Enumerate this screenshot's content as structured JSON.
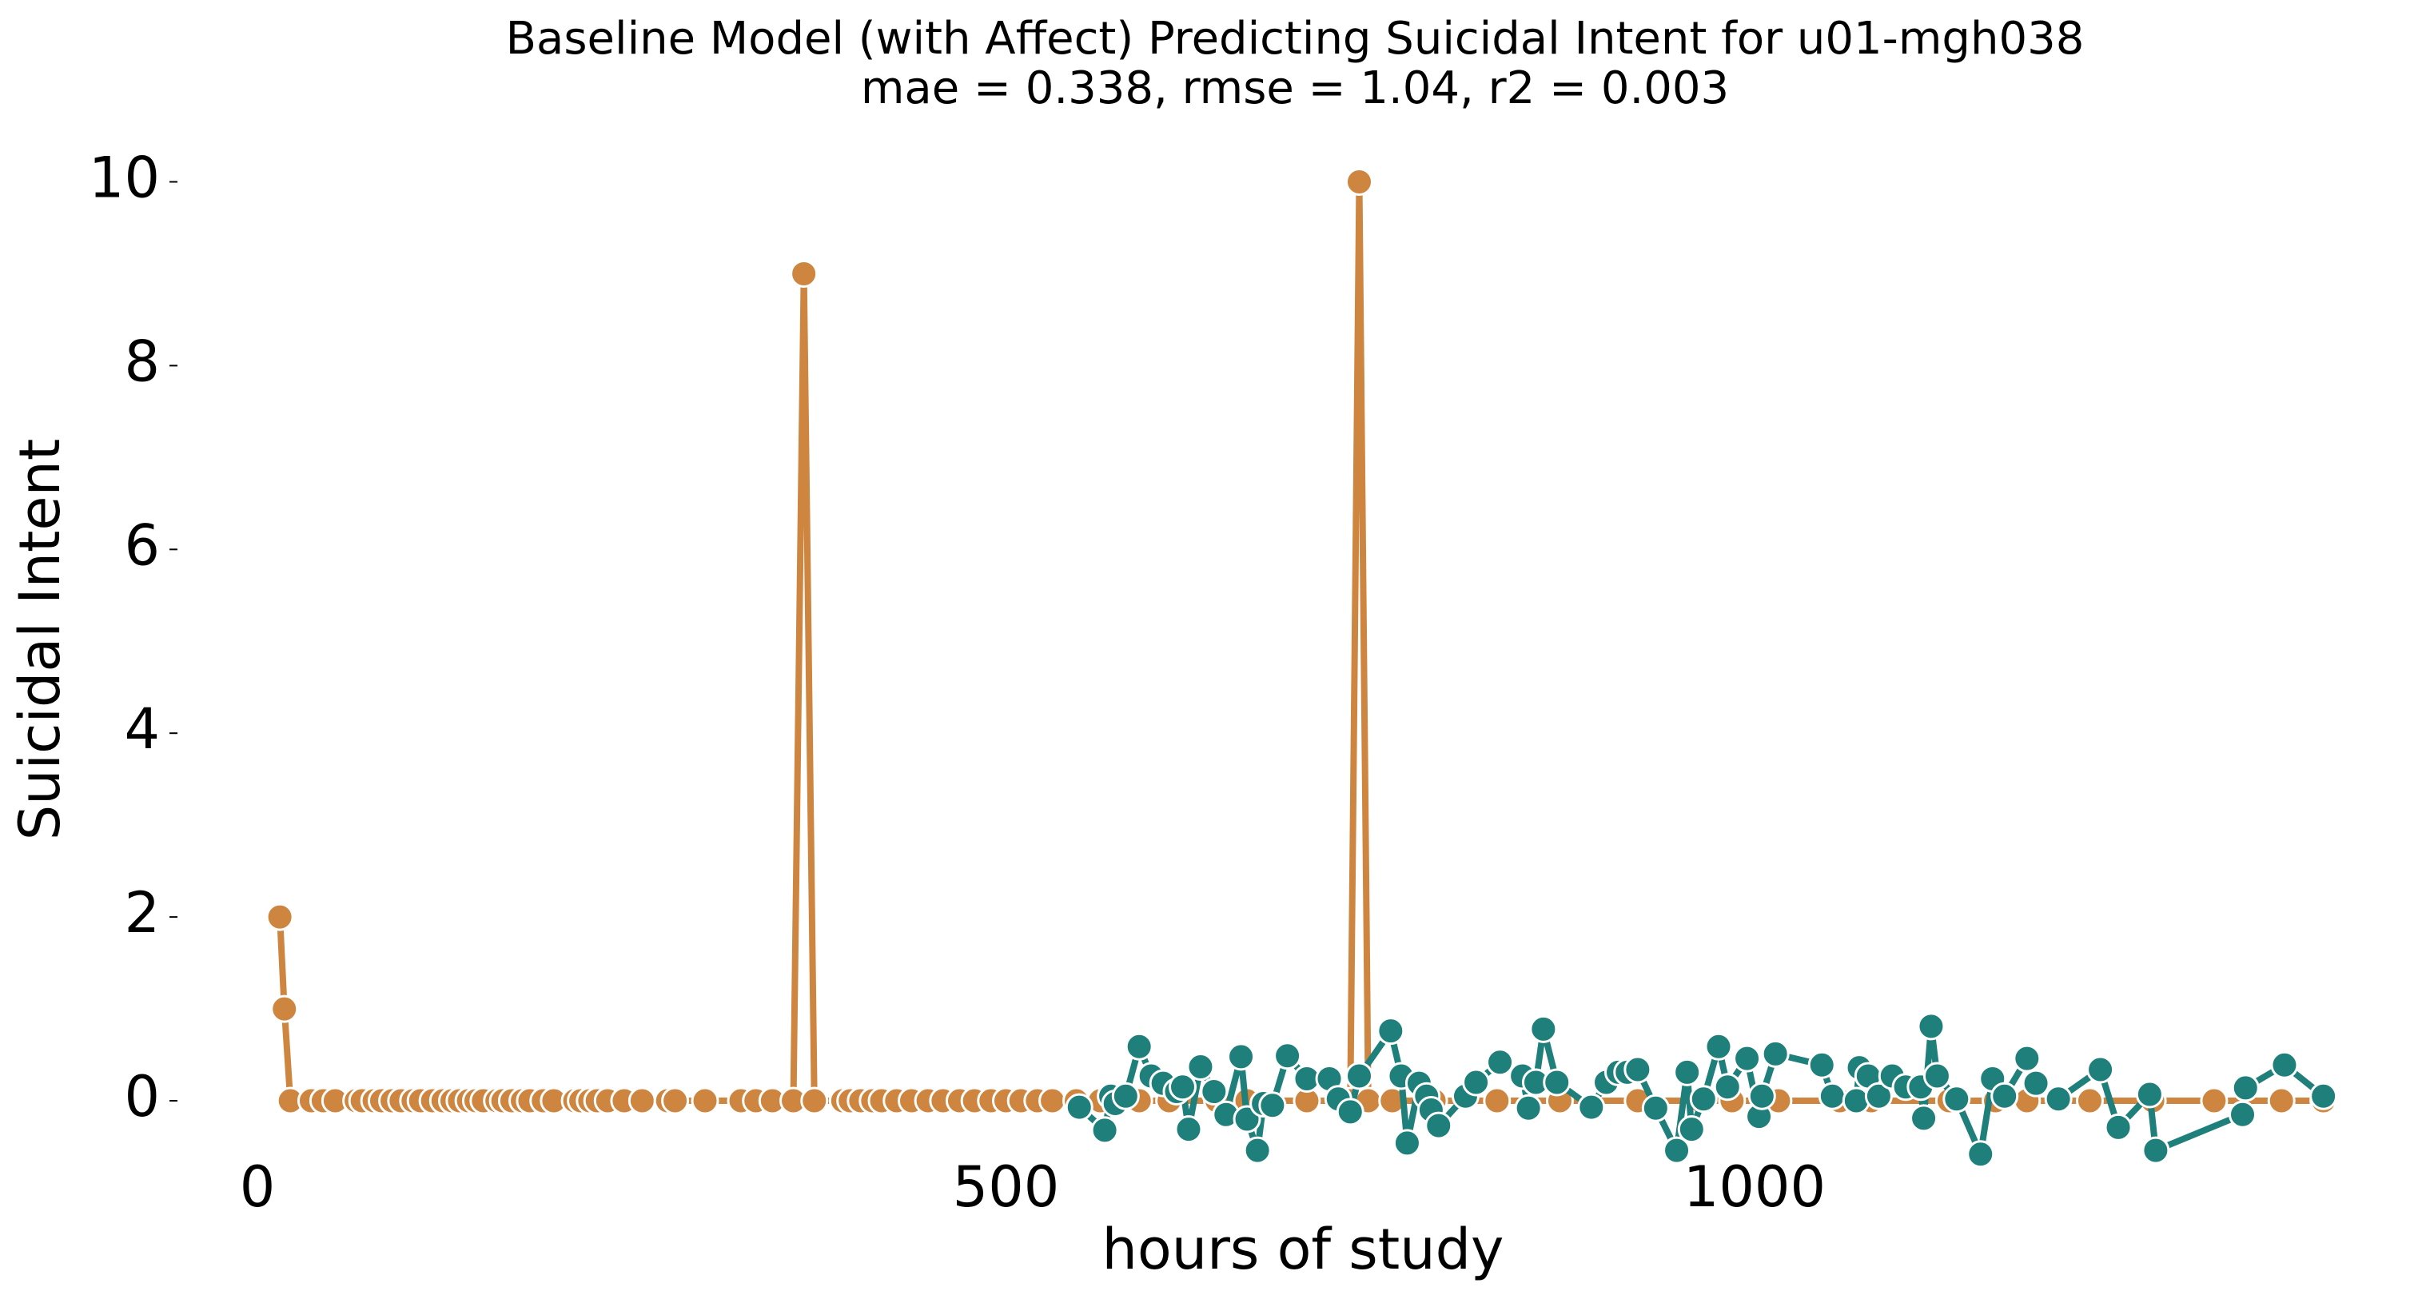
{
  "chart_data": {
    "type": "line",
    "title": "Baseline Model (with Affect) Predicting Suicidal Intent for u01-mgh038",
    "subtitle": "mae = 0.338, rmse = 1.04, r2 = 0.003",
    "xlabel": "hours of study",
    "ylabel": "Suicidal Intent",
    "xlim": [
      -47,
      1393
    ],
    "xticks": [
      0,
      500,
      1000
    ],
    "ylim": [
      -0.6,
      10.3
    ],
    "yticks": [
      0,
      2,
      4,
      6,
      8,
      10
    ],
    "grid": false,
    "series": [
      {
        "color": "#cd853f",
        "x": [
          15,
          18,
          22,
          36,
          44,
          52,
          66,
          70,
          78,
          83,
          90,
          96,
          104,
          109,
          117,
          124,
          130,
          135,
          141,
          146,
          151,
          160,
          164,
          170,
          177,
          182,
          191,
          198,
          212,
          216,
          222,
          227,
          234,
          245,
          257,
          274,
          279,
          299,
          323,
          333,
          344,
          358,
          365,
          372,
          391,
          396,
          403,
          411,
          417,
          427,
          437,
          448,
          458,
          469,
          479,
          490,
          500,
          510,
          521,
          531,
          547,
          563,
          589,
          609,
          641,
          661,
          701,
          730,
          736,
          742,
          758,
          786,
          828,
          870,
          922,
          964,
          985,
          1016,
          1057,
          1078,
          1130,
          1161,
          1182,
          1224,
          1266,
          1307,
          1352,
          1380
        ],
        "values": [
          2,
          1,
          0,
          0,
          0,
          0,
          0,
          0,
          0,
          0,
          0,
          0,
          0,
          0,
          0,
          0,
          0,
          0,
          0,
          0,
          0,
          0,
          0,
          0,
          0,
          0,
          0,
          0,
          0,
          0,
          0,
          0,
          0,
          0,
          0,
          0,
          0,
          0,
          0,
          0,
          0,
          0,
          9,
          0,
          0,
          0,
          0,
          0,
          0,
          0,
          0,
          0,
          0,
          0,
          0,
          0,
          0,
          0,
          0,
          0,
          0,
          0,
          0,
          0,
          0,
          0,
          0,
          0,
          10,
          0,
          0,
          0,
          0,
          0,
          0,
          0,
          0,
          0,
          0,
          0,
          0,
          0,
          0,
          0,
          0,
          0,
          0,
          0
        ]
      },
      {
        "color": "#1f7f7a",
        "x": [
          549,
          566,
          570,
          573,
          580,
          589,
          597,
          605,
          614,
          618,
          622,
          630,
          639,
          647,
          657,
          661,
          668,
          672,
          678,
          688,
          701,
          716,
          722,
          730,
          736,
          757,
          764,
          768,
          776,
          781,
          784,
          789,
          807,
          814,
          830,
          845,
          849,
          854,
          859,
          868,
          891,
          901,
          909,
          915,
          922,
          934,
          948,
          955,
          958,
          966,
          976,
          982,
          995,
          1003,
          1005,
          1014,
          1045,
          1052,
          1068,
          1070,
          1076,
          1083,
          1092,
          1101,
          1111,
          1113,
          1118,
          1122,
          1135,
          1151,
          1159,
          1167,
          1182,
          1188,
          1203,
          1231,
          1243,
          1264,
          1268,
          1326,
          1328,
          1354,
          1380
        ],
        "values": [
          -0.07,
          -0.32,
          0.05,
          -0.03,
          0.05,
          0.59,
          0.27,
          0.19,
          0.1,
          0.15,
          -0.31,
          0.37,
          0.1,
          -0.15,
          0.48,
          -0.2,
          -0.54,
          -0.03,
          -0.05,
          0.49,
          0.24,
          0.24,
          0.02,
          -0.12,
          0.27,
          0.76,
          0.27,
          -0.46,
          0.19,
          0.05,
          -0.1,
          -0.27,
          0.05,
          0.2,
          0.42,
          0.27,
          -0.08,
          0.2,
          0.78,
          0.2,
          -0.07,
          0.2,
          0.31,
          0.31,
          0.34,
          -0.08,
          -0.54,
          0.31,
          -0.31,
          0.02,
          0.59,
          0.15,
          0.46,
          -0.17,
          0.05,
          0.51,
          0.39,
          0.05,
          0,
          0.36,
          0.27,
          0.05,
          0.27,
          0.15,
          0.15,
          -0.19,
          0.81,
          0.27,
          0.02,
          -0.58,
          0.24,
          0.05,
          0.46,
          0.19,
          0.02,
          0.34,
          -0.29,
          0.07,
          -0.54,
          -0.15,
          0.14,
          0.39,
          0.05
        ]
      }
    ]
  }
}
